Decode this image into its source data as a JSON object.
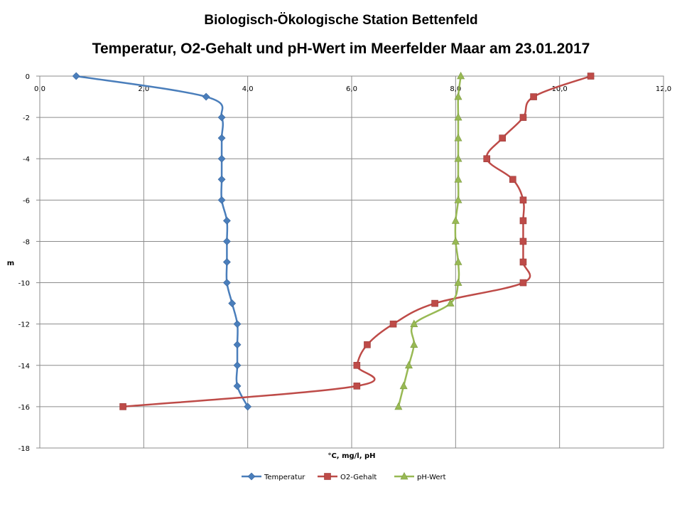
{
  "chart_data": {
    "type": "line",
    "title": "Biologisch-Ökologische Station Bettenfeld",
    "subtitle": "Temperatur, O2-Gehalt und pH-Wert im Meerfelder Maar am 23.01.2017",
    "xlabel": "°C, mg/l, pH",
    "ylabel": "m",
    "xlim": [
      0,
      12
    ],
    "ylim": [
      -18,
      0
    ],
    "x_tick_labels": [
      "0,0",
      "2,0",
      "4,0",
      "6,0",
      "8,0",
      "10,0",
      "12,0"
    ],
    "y_tick_labels": [
      "0",
      "-2",
      "-4",
      "-6",
      "-8",
      "-10",
      "-12",
      "-14",
      "-16",
      "-18"
    ],
    "x_axis_position": "top",
    "grid": true,
    "legend_position": "bottom",
    "series": [
      {
        "name": "Temperatur",
        "color": "#4A7EBB",
        "marker": "diamond",
        "points": [
          {
            "x": 0.7,
            "y": 0
          },
          {
            "x": 3.2,
            "y": -1
          },
          {
            "x": 3.5,
            "y": -2
          },
          {
            "x": 3.5,
            "y": -3
          },
          {
            "x": 3.5,
            "y": -4
          },
          {
            "x": 3.5,
            "y": -5
          },
          {
            "x": 3.5,
            "y": -6
          },
          {
            "x": 3.6,
            "y": -7
          },
          {
            "x": 3.6,
            "y": -8
          },
          {
            "x": 3.6,
            "y": -9
          },
          {
            "x": 3.6,
            "y": -10
          },
          {
            "x": 3.7,
            "y": -11
          },
          {
            "x": 3.8,
            "y": -12
          },
          {
            "x": 3.8,
            "y": -13
          },
          {
            "x": 3.8,
            "y": -14
          },
          {
            "x": 3.8,
            "y": -15
          },
          {
            "x": 4.0,
            "y": -16
          }
        ]
      },
      {
        "name": "O2-Gehalt",
        "color": "#BE4B48",
        "marker": "square",
        "points": [
          {
            "x": 10.6,
            "y": 0
          },
          {
            "x": 9.5,
            "y": -1
          },
          {
            "x": 9.3,
            "y": -2
          },
          {
            "x": 8.9,
            "y": -3
          },
          {
            "x": 8.6,
            "y": -4
          },
          {
            "x": 9.1,
            "y": -5
          },
          {
            "x": 9.3,
            "y": -6
          },
          {
            "x": 9.3,
            "y": -7
          },
          {
            "x": 9.3,
            "y": -8
          },
          {
            "x": 9.3,
            "y": -9
          },
          {
            "x": 9.3,
            "y": -10
          },
          {
            "x": 7.6,
            "y": -11
          },
          {
            "x": 6.8,
            "y": -12
          },
          {
            "x": 6.3,
            "y": -13
          },
          {
            "x": 6.1,
            "y": -14
          },
          {
            "x": 6.1,
            "y": -15
          },
          {
            "x": 1.6,
            "y": -16
          }
        ]
      },
      {
        "name": "pH-Wert",
        "color": "#98B954",
        "marker": "triangle",
        "points": [
          {
            "x": 8.1,
            "y": 0
          },
          {
            "x": 8.05,
            "y": -1
          },
          {
            "x": 8.05,
            "y": -2
          },
          {
            "x": 8.05,
            "y": -3
          },
          {
            "x": 8.05,
            "y": -4
          },
          {
            "x": 8.05,
            "y": -5
          },
          {
            "x": 8.05,
            "y": -6
          },
          {
            "x": 8.0,
            "y": -7
          },
          {
            "x": 8.0,
            "y": -8
          },
          {
            "x": 8.05,
            "y": -9
          },
          {
            "x": 8.05,
            "y": -10
          },
          {
            "x": 7.9,
            "y": -11
          },
          {
            "x": 7.2,
            "y": -12
          },
          {
            "x": 7.2,
            "y": -13
          },
          {
            "x": 7.1,
            "y": -14
          },
          {
            "x": 7.0,
            "y": -15
          },
          {
            "x": 6.9,
            "y": -16
          }
        ]
      }
    ]
  }
}
